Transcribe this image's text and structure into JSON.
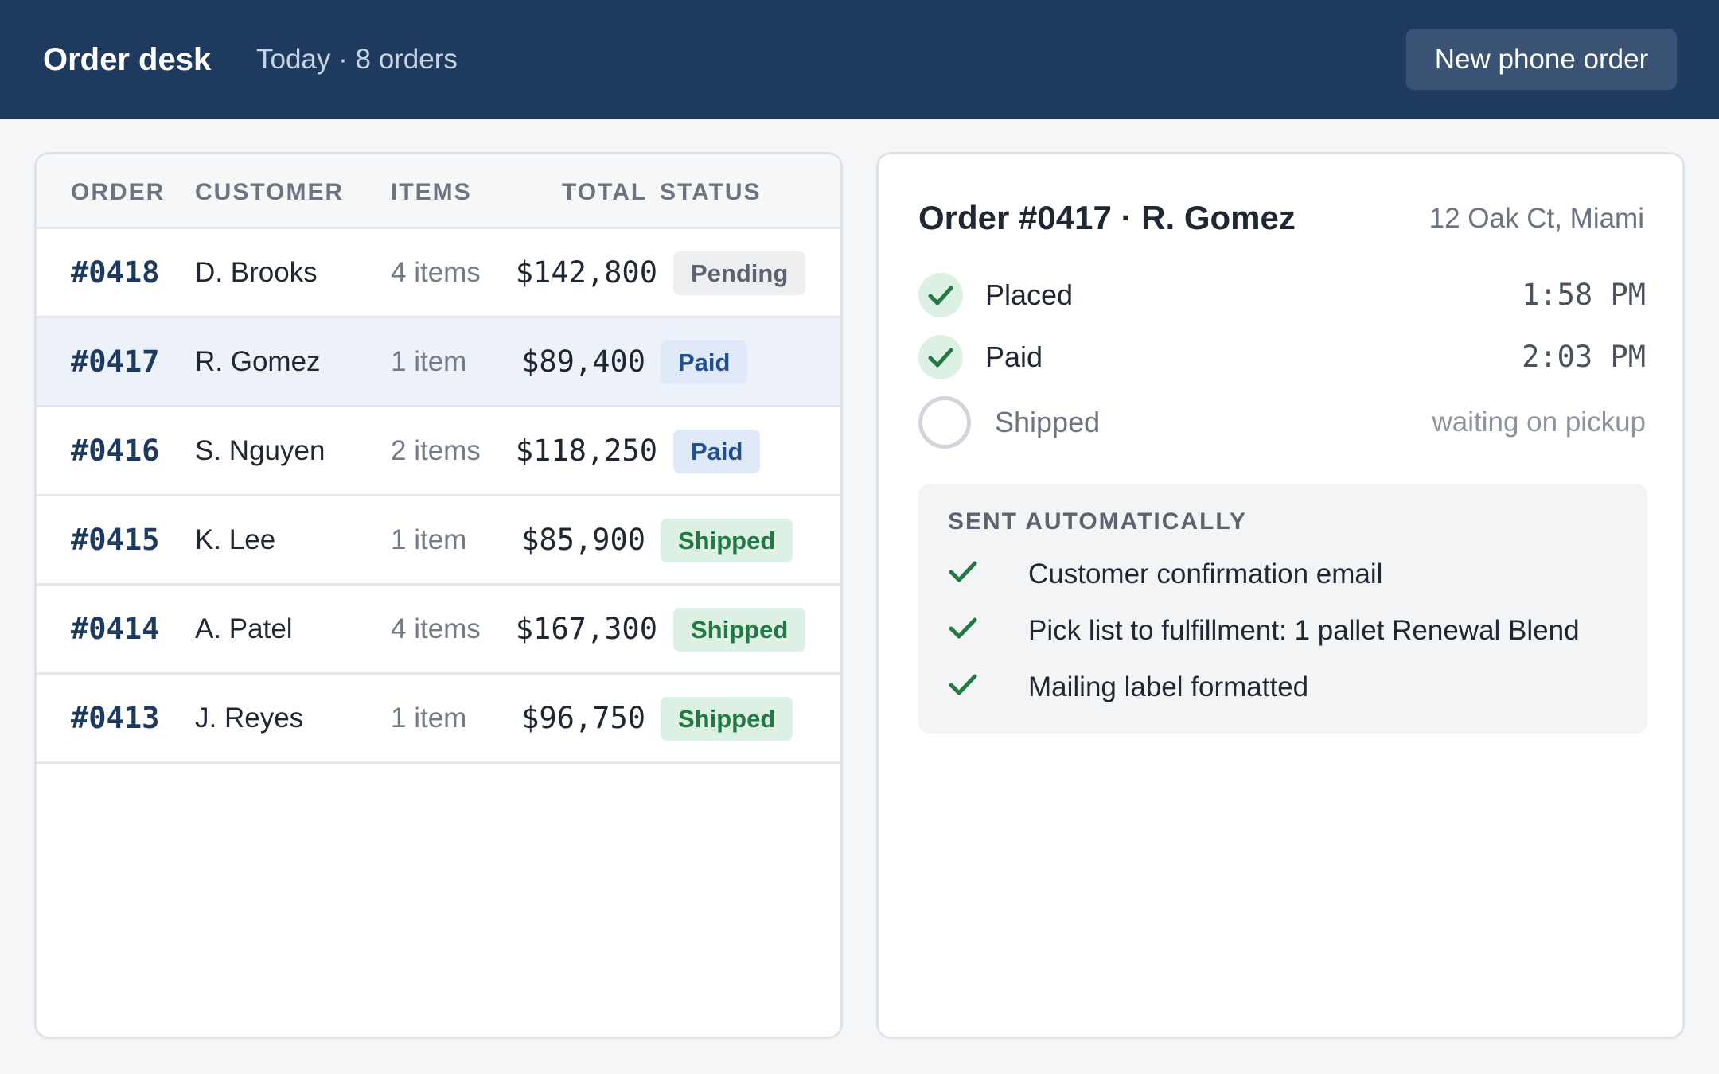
{
  "header": {
    "title": "Order desk",
    "subtitle": "Today · 8 orders",
    "new_order_label": "New phone order"
  },
  "table": {
    "columns": [
      "ORDER",
      "CUSTOMER",
      "ITEMS",
      "TOTAL",
      "STATUS"
    ],
    "rows": [
      {
        "id": "#0418",
        "customer": "D. Brooks",
        "items": "4 items",
        "total": "$142,800",
        "status": "Pending"
      },
      {
        "id": "#0417",
        "customer": "R. Gomez",
        "items": "1 item",
        "total": "$89,400",
        "status": "Paid"
      },
      {
        "id": "#0416",
        "customer": "S. Nguyen",
        "items": "2 items",
        "total": "$118,250",
        "status": "Paid"
      },
      {
        "id": "#0415",
        "customer": "K. Lee",
        "items": "1 item",
        "total": "$85,900",
        "status": "Shipped"
      },
      {
        "id": "#0414",
        "customer": "A. Patel",
        "items": "4 items",
        "total": "$167,300",
        "status": "Shipped"
      },
      {
        "id": "#0413",
        "customer": "J. Reyes",
        "items": "1 item",
        "total": "$96,750",
        "status": "Shipped"
      }
    ],
    "selected_id": "#0417"
  },
  "detail": {
    "title": "Order #0417 · R. Gomez",
    "address": "12 Oak Ct, Miami",
    "steps": [
      {
        "label": "Placed",
        "time": "1:58 PM",
        "done": true
      },
      {
        "label": "Paid",
        "time": "2:03 PM",
        "done": true
      },
      {
        "label": "Shipped",
        "time": "waiting on pickup",
        "done": false
      }
    ],
    "auto": {
      "title": "SENT AUTOMATICALLY",
      "items": [
        "Customer confirmation email",
        "Pick list to fulfillment: 1 pallet Renewal Blend",
        "Mailing label formatted"
      ]
    }
  },
  "colors": {
    "header_bg": "#1f3a5f",
    "accent_green": "#227a43",
    "paid_blue": "#1f4f8f"
  },
  "icons": {
    "step_done": "check-icon",
    "step_pending": "empty-circle-icon",
    "auto_item": "check-icon"
  }
}
